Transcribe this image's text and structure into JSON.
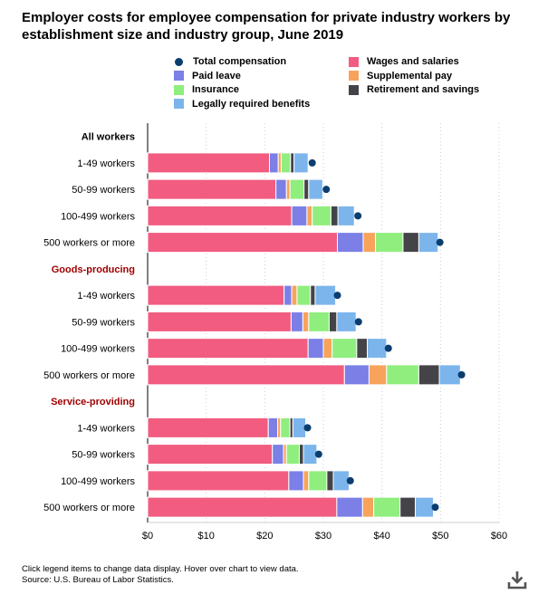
{
  "title": "Employer costs for employee compensation for private industry workers by establishment size and industry group, June 2019",
  "legend": {
    "left": [
      {
        "key": "total",
        "label": "Total compensation",
        "color": "#0b3d6e",
        "shape": "dot"
      },
      {
        "key": "paid_leave",
        "label": "Paid leave",
        "color": "#7b7fe6",
        "shape": "square"
      },
      {
        "key": "insurance",
        "label": "Insurance",
        "color": "#90ee7e",
        "shape": "square"
      },
      {
        "key": "legal",
        "label": "Legally required benefits",
        "color": "#7cb5ec",
        "shape": "square"
      }
    ],
    "right": [
      {
        "key": "wages",
        "label": "Wages and salaries",
        "color": "#f15c80",
        "shape": "square"
      },
      {
        "key": "supplemental",
        "label": "Supplemental pay",
        "color": "#f7a35c",
        "shape": "square"
      },
      {
        "key": "retirement",
        "label": "Retirement and savings",
        "color": "#434348",
        "shape": "square"
      }
    ]
  },
  "chart_data": {
    "type": "bar",
    "orientation": "horizontal",
    "stacked": true,
    "title": "Employer costs for employee compensation for private industry workers by establishment size and industry group, June 2019",
    "xlim": [
      0,
      60
    ],
    "x_ticks": [
      "$0",
      "$10",
      "$20",
      "$30",
      "$40",
      "$50",
      "$60"
    ],
    "grid": "vertical dotted",
    "groups": [
      {
        "label": "All workers",
        "color": "#000000",
        "categories": [
          "1-49 workers",
          "50-99 workers",
          "100-499 workers",
          "500 workers or more"
        ]
      },
      {
        "label": "Goods-producing",
        "color": "#a10000",
        "categories": [
          "1-49 workers",
          "50-99 workers",
          "100-499 workers",
          "500 workers or more"
        ]
      },
      {
        "label": "Service-providing",
        "color": "#a10000",
        "categories": [
          "1-49 workers",
          "50-99 workers",
          "100-499 workers",
          "500 workers or more"
        ]
      }
    ],
    "series": [
      {
        "name": "Wages and salaries",
        "color": "#f15c80",
        "values": [
          20.8,
          21.9,
          24.6,
          32.4,
          23.3,
          24.5,
          27.4,
          33.6,
          20.6,
          21.3,
          24.1,
          32.3
        ]
      },
      {
        "name": "Paid leave",
        "color": "#7b7fe6",
        "values": [
          1.5,
          1.8,
          2.6,
          4.4,
          1.3,
          2.0,
          2.6,
          4.2,
          1.6,
          1.9,
          2.5,
          4.4
        ]
      },
      {
        "name": "Supplemental pay",
        "color": "#f7a35c",
        "values": [
          0.5,
          0.6,
          0.9,
          2.1,
          0.9,
          1.0,
          1.5,
          3.0,
          0.5,
          0.5,
          0.9,
          1.9
        ]
      },
      {
        "name": "Insurance",
        "color": "#90ee7e",
        "values": [
          1.6,
          2.4,
          3.2,
          4.7,
          2.3,
          3.5,
          4.2,
          5.5,
          1.6,
          2.2,
          3.1,
          4.5
        ]
      },
      {
        "name": "Retirement and savings",
        "color": "#434348",
        "values": [
          0.6,
          0.8,
          1.2,
          2.7,
          0.8,
          1.3,
          1.8,
          3.5,
          0.5,
          0.7,
          1.1,
          2.6
        ]
      },
      {
        "name": "Legally required benefits",
        "color": "#7cb5ec",
        "values": [
          2.4,
          2.4,
          2.8,
          3.3,
          3.5,
          3.3,
          3.3,
          3.6,
          2.2,
          2.3,
          2.7,
          3.1
        ]
      }
    ],
    "total_compensation": {
      "name": "Total compensation",
      "color": "#0b3d6e",
      "values": [
        28.1,
        30.5,
        35.9,
        49.9,
        32.4,
        36.0,
        41.1,
        53.6,
        27.3,
        29.2,
        34.6,
        49.1
      ]
    }
  },
  "footnote": {
    "line1": "Click legend items to change data display. Hover over chart to view data.",
    "line2": "Source: U.S. Bureau of Labor Statistics."
  },
  "download_icon": "download-icon"
}
